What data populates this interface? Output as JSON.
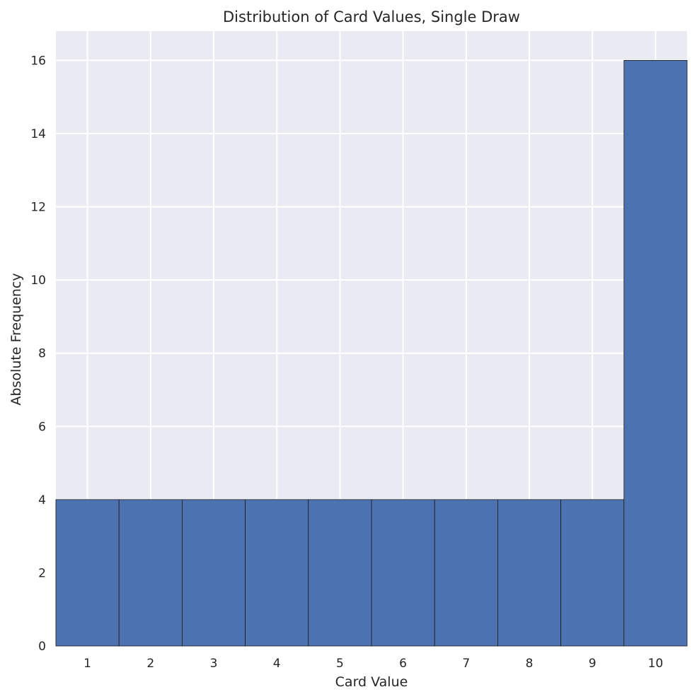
{
  "chart_data": {
    "type": "bar",
    "title": "Distribution of Card Values, Single Draw",
    "xlabel": "Card Value",
    "ylabel": "Absolute Frequency",
    "categories": [
      "1",
      "2",
      "3",
      "4",
      "5",
      "6",
      "7",
      "8",
      "9",
      "10"
    ],
    "values": [
      4,
      4,
      4,
      4,
      4,
      4,
      4,
      4,
      4,
      16
    ],
    "xlim": [
      0.5,
      10.5
    ],
    "ylim": [
      0,
      16.8
    ],
    "yticks": [
      "0",
      "2",
      "4",
      "6",
      "8",
      "10",
      "12",
      "14",
      "16"
    ],
    "grid": true,
    "legend": "none",
    "colors": {
      "bar": "#4c72b0",
      "bar_edge": "#1a1a1a",
      "plot_background": "#eaeaf2",
      "grid": "#ffffff"
    }
  }
}
